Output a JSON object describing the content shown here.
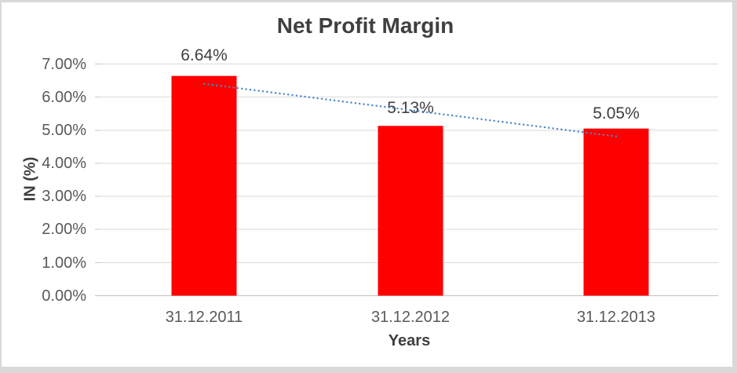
{
  "window": {
    "background_color": "#D9D9D9",
    "chart_background_color": "#FFFFFF"
  },
  "chart_data": {
    "type": "bar",
    "title": "Net Profit Margin",
    "xlabel": "Years",
    "ylabel": "IN (%)",
    "categories": [
      "31.12.2011",
      "31.12.2012",
      "31.12.2013"
    ],
    "values": [
      6.64,
      5.13,
      5.05
    ],
    "value_labels": [
      "6.64%",
      "5.13%",
      "5.05%"
    ],
    "series_name": "Net Profit Margin",
    "ylim": [
      0,
      7
    ],
    "ytick_step": 1,
    "yticks": [
      "0.00%",
      "1.00%",
      "2.00%",
      "3.00%",
      "4.00%",
      "5.00%",
      "6.00%",
      "7.00%"
    ],
    "grid": true,
    "legend": "none",
    "bar_color": "#FF0000",
    "gridline_color": "#D9D9D9",
    "axis_line_color": "#C8C8C8",
    "tick_label_color": "#595959",
    "text_color": "#3F3F3F",
    "trendline": {
      "type": "linear",
      "style": "dotted",
      "color": "#4A86C8"
    }
  }
}
